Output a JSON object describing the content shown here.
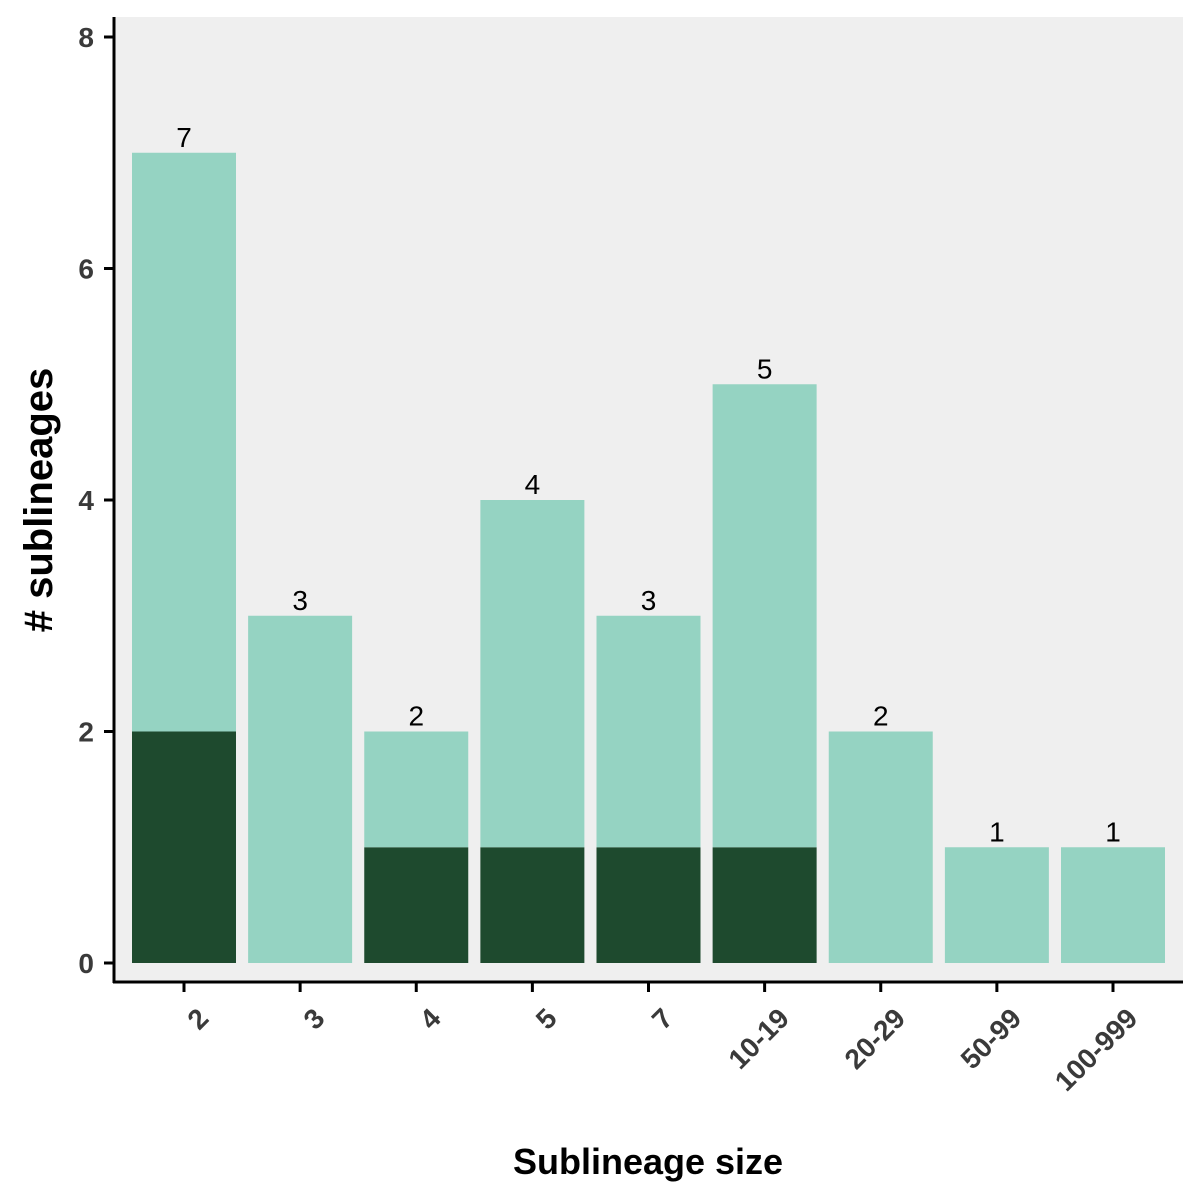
{
  "chart_data": {
    "type": "bar",
    "stacked": true,
    "categories": [
      "2",
      "3",
      "4",
      "5",
      "7",
      "10-19",
      "20-29",
      "50-99",
      "100-999"
    ],
    "series": [
      {
        "values": [
          2,
          0,
          1,
          1,
          1,
          1,
          0,
          0,
          0
        ],
        "color": "#1e4a2e"
      },
      {
        "values": [
          5,
          3,
          1,
          3,
          2,
          4,
          2,
          1,
          1
        ],
        "color": "#95d3c2"
      }
    ],
    "totals": [
      7,
      3,
      2,
      4,
      3,
      5,
      2,
      1,
      1
    ],
    "total_labels": [
      "7",
      "3",
      "2",
      "4",
      "3",
      "5",
      "2",
      "1",
      "1"
    ],
    "yticks": [
      0,
      2,
      4,
      6,
      8
    ],
    "ytick_labels": [
      "0",
      "2",
      "4",
      "6",
      "8"
    ],
    "ylim": [
      0,
      8
    ],
    "xlabel": "Sublineage size",
    "ylabel": "# sublineages",
    "grid": false,
    "panel_background": "#efefef"
  }
}
